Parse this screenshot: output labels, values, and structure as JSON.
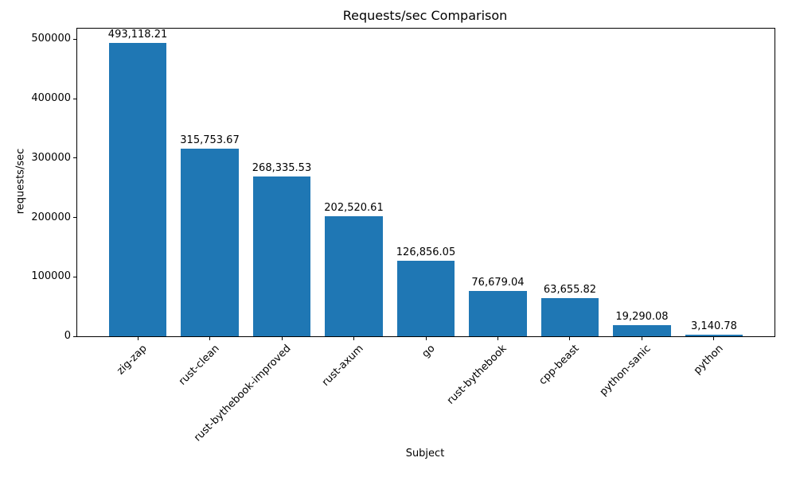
{
  "title": "Requests/sec Comparison",
  "chart_data": {
    "type": "bar",
    "title": "Requests/sec Comparison",
    "xlabel": "Subject",
    "ylabel": "requests/sec",
    "categories": [
      "zig-zap",
      "rust-clean",
      "rust-bythebook-improved",
      "rust-axum",
      "go",
      "rust-bythebook",
      "cpp-beast",
      "python-sanic",
      "python"
    ],
    "values": [
      493118.21,
      315753.67,
      268335.53,
      202520.61,
      126856.05,
      76679.04,
      63655.82,
      19290.08,
      3140.78
    ],
    "bar_labels": [
      "493,118.21",
      "315,753.67",
      "268,335.53",
      "202,520.61",
      "126,856.05",
      "76,679.04",
      "63,655.82",
      "19,290.08",
      "3,140.78"
    ],
    "yticks": [
      0,
      100000,
      200000,
      300000,
      400000,
      500000
    ],
    "ytick_labels": [
      "0",
      "100000",
      "200000",
      "300000",
      "400000",
      "500000"
    ],
    "ylim": [
      0,
      517774
    ],
    "bar_color": "#1f77b4",
    "bar_width_ratio": 0.8,
    "x_margin_units": 0.44,
    "grid": false,
    "legend": "none",
    "tick_rotation_deg": 45
  }
}
